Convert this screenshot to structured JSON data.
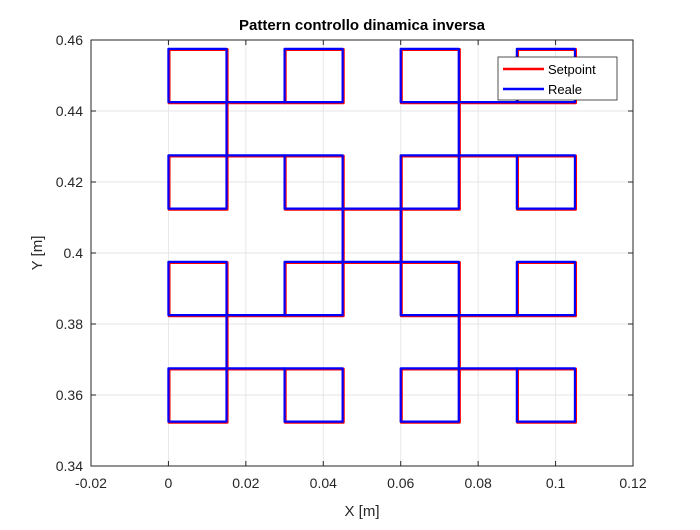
{
  "chart_data": {
    "type": "line",
    "title": "Pattern controllo dinamica inversa",
    "xlabel": "X [m]",
    "ylabel": "Y [m]",
    "xlim": [
      -0.02,
      0.12
    ],
    "ylim": [
      0.34,
      0.46
    ],
    "xticks": [
      -0.02,
      0,
      0.02,
      0.04,
      0.06,
      0.08,
      0.1,
      0.12
    ],
    "xtick_labels": [
      "-0.02",
      "0",
      "0.02",
      "0.04",
      "0.06",
      "0.08",
      "0.1",
      "0.12"
    ],
    "yticks": [
      0.34,
      0.36,
      0.38,
      0.4,
      0.42,
      0.44,
      0.46
    ],
    "ytick_labels": [
      "0.34",
      "0.36",
      "0.38",
      "0.4",
      "0.42",
      "0.44",
      "0.46"
    ],
    "grid": true,
    "legend_location": "top-right",
    "series": [
      {
        "name": "Setpoint",
        "color": "#ff0000",
        "squares": [
          {
            "x": [
              0,
              0.015
            ],
            "y": [
              0.4425,
              0.4575
            ]
          },
          {
            "x": [
              0.03,
              0.045
            ],
            "y": [
              0.4425,
              0.4575
            ]
          },
          {
            "x": [
              0.06,
              0.075
            ],
            "y": [
              0.4425,
              0.4575
            ]
          },
          {
            "x": [
              0.09,
              0.105
            ],
            "y": [
              0.4425,
              0.4575
            ]
          },
          {
            "x": [
              0,
              0.015
            ],
            "y": [
              0.4125,
              0.4275
            ]
          },
          {
            "x": [
              0.03,
              0.045
            ],
            "y": [
              0.4125,
              0.4275
            ]
          },
          {
            "x": [
              0.06,
              0.075
            ],
            "y": [
              0.4125,
              0.4275
            ]
          },
          {
            "x": [
              0.09,
              0.105
            ],
            "y": [
              0.4125,
              0.4275
            ]
          },
          {
            "x": [
              0,
              0.015
            ],
            "y": [
              0.3825,
              0.3975
            ]
          },
          {
            "x": [
              0.03,
              0.045
            ],
            "y": [
              0.3825,
              0.3975
            ]
          },
          {
            "x": [
              0.06,
              0.075
            ],
            "y": [
              0.3825,
              0.3975
            ]
          },
          {
            "x": [
              0.09,
              0.105
            ],
            "y": [
              0.3825,
              0.3975
            ]
          },
          {
            "x": [
              0,
              0.015
            ],
            "y": [
              0.3525,
              0.3675
            ]
          },
          {
            "x": [
              0.03,
              0.045
            ],
            "y": [
              0.3525,
              0.3675
            ]
          },
          {
            "x": [
              0.06,
              0.075
            ],
            "y": [
              0.3525,
              0.3675
            ]
          },
          {
            "x": [
              0.09,
              0.105
            ],
            "y": [
              0.3525,
              0.3675
            ]
          }
        ],
        "segments": [
          {
            "x": [
              0.015,
              0.03
            ],
            "y": [
              0.4425,
              0.4425
            ]
          },
          {
            "x": [
              0.015,
              0.03
            ],
            "y": [
              0.4275,
              0.4275
            ]
          },
          {
            "x": [
              0.015,
              0.015
            ],
            "y": [
              0.4275,
              0.4425
            ]
          },
          {
            "x": [
              0.075,
              0.09
            ],
            "y": [
              0.4425,
              0.4425
            ]
          },
          {
            "x": [
              0.075,
              0.09
            ],
            "y": [
              0.4275,
              0.4275
            ]
          },
          {
            "x": [
              0.075,
              0.075
            ],
            "y": [
              0.4275,
              0.4425
            ]
          },
          {
            "x": [
              0.015,
              0.03
            ],
            "y": [
              0.3825,
              0.3825
            ]
          },
          {
            "x": [
              0.015,
              0.03
            ],
            "y": [
              0.3675,
              0.3675
            ]
          },
          {
            "x": [
              0.015,
              0.015
            ],
            "y": [
              0.3675,
              0.3825
            ]
          },
          {
            "x": [
              0.075,
              0.09
            ],
            "y": [
              0.3825,
              0.3825
            ]
          },
          {
            "x": [
              0.075,
              0.09
            ],
            "y": [
              0.3675,
              0.3675
            ]
          },
          {
            "x": [
              0.075,
              0.075
            ],
            "y": [
              0.3675,
              0.3825
            ]
          },
          {
            "x": [
              0.045,
              0.06
            ],
            "y": [
              0.4125,
              0.4125
            ]
          },
          {
            "x": [
              0.045,
              0.06
            ],
            "y": [
              0.3975,
              0.3975
            ]
          },
          {
            "x": [
              0.045,
              0.045
            ],
            "y": [
              0.3975,
              0.4125
            ]
          },
          {
            "x": [
              0.06,
              0.06
            ],
            "y": [
              0.3975,
              0.4125
            ]
          }
        ]
      },
      {
        "name": "Reale",
        "color": "#0000ff",
        "same_path_as": "Setpoint"
      }
    ]
  }
}
